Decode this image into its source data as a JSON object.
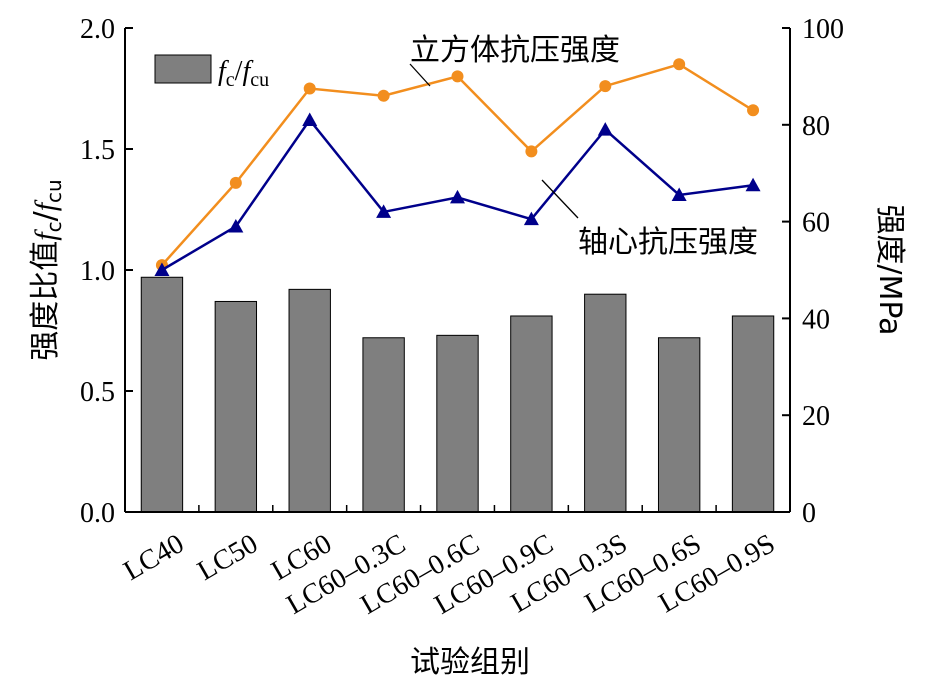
{
  "chart_data": {
    "type": "bar+line",
    "title": "",
    "xlabel": "试验组别",
    "ylabel_left": {
      "before": "强度比值",
      "f1": "f",
      "s1": "c",
      "slash": "/",
      "f2": "f",
      "s2": "cu"
    },
    "ylabel_right": "强度/MPa",
    "categories": [
      "LC40",
      "LC50",
      "LC60",
      "LC60–0.3C",
      "LC60–0.6C",
      "LC60–0.9C",
      "LC60–0.3S",
      "LC60–0.6S",
      "LC60–0.9S"
    ],
    "left_axis": {
      "ylim": [
        0,
        2.0
      ],
      "ticks": [
        "0.0",
        "0.5",
        "1.0",
        "1.5",
        "2.0"
      ]
    },
    "right_axis": {
      "ylim": [
        0,
        100
      ],
      "ticks": [
        "0",
        "20",
        "40",
        "60",
        "80",
        "100"
      ]
    },
    "bars": {
      "name": "fc/fcu",
      "legend": {
        "f1": "f",
        "s1": "c",
        "slash": "/",
        "f2": "f",
        "s2": "cu"
      },
      "axis": "left",
      "color": "#7f7f7f",
      "values": [
        0.97,
        0.87,
        0.92,
        0.72,
        0.73,
        0.81,
        0.9,
        0.72,
        0.81
      ]
    },
    "series": [
      {
        "name": "立方体抗压强度",
        "axis": "right",
        "color": "#f28e1e",
        "marker": "circle",
        "values": [
          51.0,
          68.0,
          87.5,
          86.0,
          90.0,
          74.5,
          88.0,
          92.5,
          83.0
        ]
      },
      {
        "name": "轴心抗压强度",
        "axis": "right",
        "color": "#00008b",
        "marker": "triangle",
        "values": [
          50.0,
          59.0,
          81.0,
          62.0,
          65.0,
          60.5,
          79.0,
          65.5,
          67.5
        ]
      }
    ]
  }
}
